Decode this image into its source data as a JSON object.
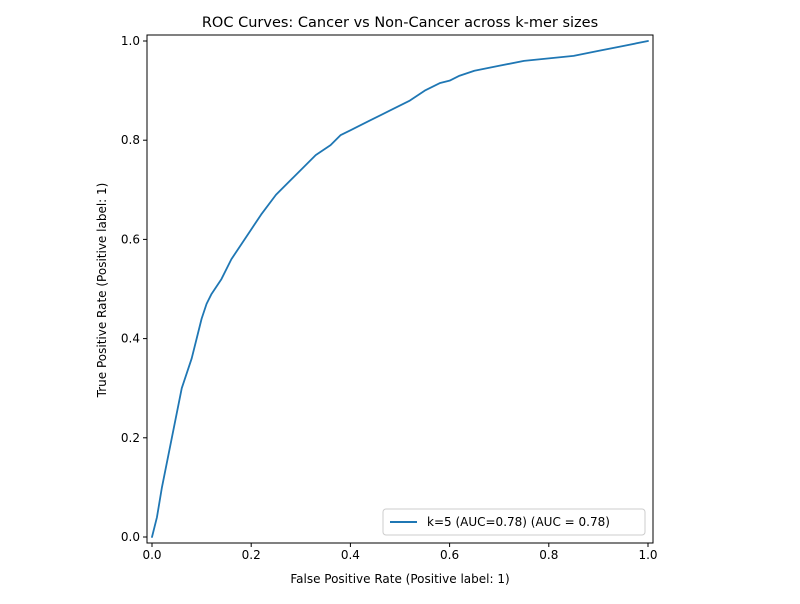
{
  "chart_data": {
    "type": "line",
    "title": "ROC Curves: Cancer vs Non-Cancer across k-mer sizes",
    "xlabel": "False Positive Rate (Positive label: 1)",
    "ylabel": "True Positive Rate (Positive label: 1)",
    "xlim": [
      0.0,
      1.0
    ],
    "ylim": [
      0.0,
      1.0
    ],
    "xticks": [
      "0.0",
      "0.2",
      "0.4",
      "0.6",
      "0.8",
      "1.0"
    ],
    "yticks": [
      "0.0",
      "0.2",
      "0.4",
      "0.6",
      "0.8",
      "1.0"
    ],
    "grid": false,
    "legend": "lower right",
    "series": [
      {
        "name": "k=5 (AUC=0.78) (AUC = 0.78)",
        "color": "#1f77b4",
        "x": [
          0.0,
          0.01,
          0.02,
          0.04,
          0.06,
          0.08,
          0.09,
          0.1,
          0.11,
          0.12,
          0.14,
          0.16,
          0.18,
          0.2,
          0.22,
          0.25,
          0.28,
          0.3,
          0.33,
          0.36,
          0.38,
          0.4,
          0.44,
          0.48,
          0.52,
          0.55,
          0.58,
          0.6,
          0.62,
          0.65,
          0.7,
          0.75,
          0.8,
          0.85,
          0.9,
          0.95,
          1.0
        ],
        "y": [
          0.0,
          0.04,
          0.1,
          0.2,
          0.3,
          0.36,
          0.4,
          0.44,
          0.47,
          0.49,
          0.52,
          0.56,
          0.59,
          0.62,
          0.65,
          0.69,
          0.72,
          0.74,
          0.77,
          0.79,
          0.81,
          0.82,
          0.84,
          0.86,
          0.88,
          0.9,
          0.915,
          0.92,
          0.93,
          0.94,
          0.95,
          0.96,
          0.965,
          0.97,
          0.98,
          0.99,
          1.0
        ]
      }
    ]
  }
}
